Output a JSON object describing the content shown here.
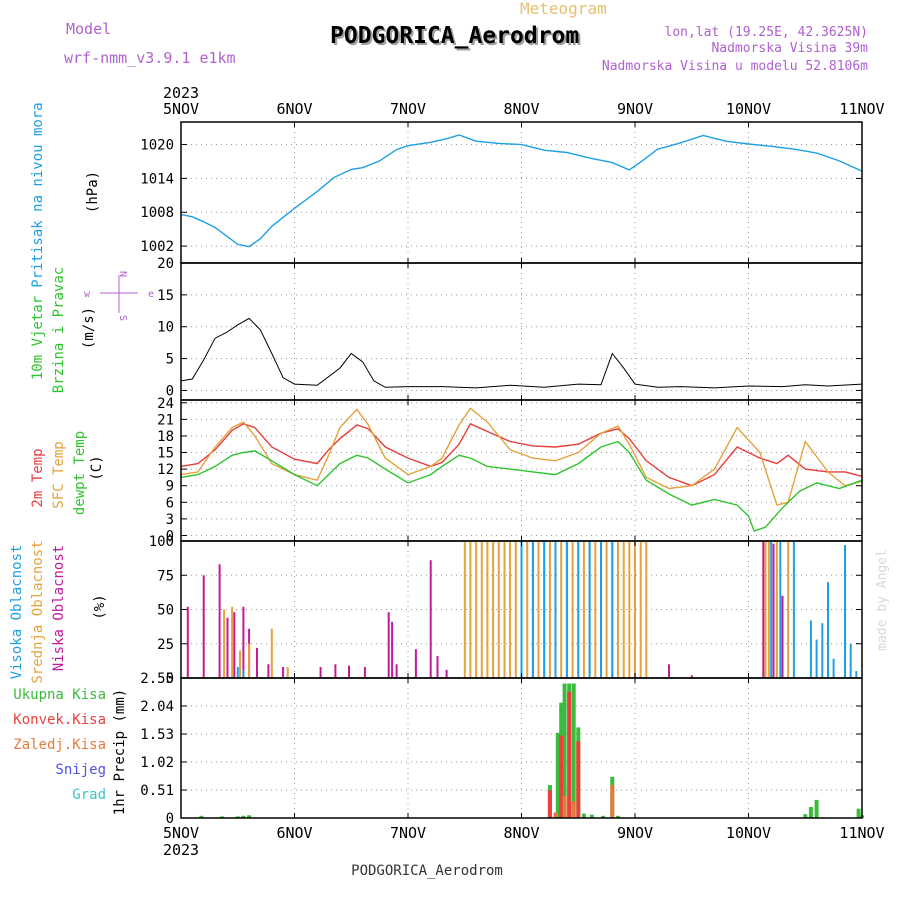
{
  "header": {
    "model_label": "Model",
    "model_name": "wrf-nmm_v3.9.1 e1km",
    "meteogram_label": "Meteogram",
    "station_title": "PODGORICA_Aerodrom",
    "lonlat": "lon,lat (19.25E, 42.3625N)",
    "elevation": "Nadmorska Visina 39m",
    "model_elevation": "Nadmorska Visina u modelu 52.8106m"
  },
  "footer": {
    "station": "PODGORICA_Aerodrom",
    "credit": "made by Angel"
  },
  "colors": {
    "pressure": "#1e9fe6",
    "temp2m": "#e83c3c",
    "sfc_temp": "#e6a23c",
    "dewpt": "#2ec42e",
    "low_cloud": "#c41a9a",
    "mid_cloud": "#e6a23c",
    "high_cloud": "#1e9fe6",
    "wind_speed": "#000000",
    "precip_total": "#3cba3c",
    "precip_convective": "#e8403c",
    "precip_stratiform": "#e67a3c",
    "snow": "#5050e6",
    "hail": "#3cc4c4",
    "model_label": "#b060d0",
    "title_meteogram": "#e6c070"
  },
  "chart_data": [
    {
      "type": "line",
      "panel": "pressure",
      "ylabel_lines": [
        "Pritisak na nivou mora"
      ],
      "unit": "(hPa)",
      "ylim": [
        999,
        1024
      ],
      "yticks": [
        1002,
        1008,
        1014,
        1020
      ],
      "x_top_year": "2023",
      "x_bottom_year": "2023",
      "x_ticklabels": [
        "5NOV",
        "6NOV",
        "7NOV",
        "8NOV",
        "9NOV",
        "10NOV",
        "11NOV"
      ],
      "x_days": [
        0,
        6
      ],
      "series": [
        {
          "name": "Pritisak na nivou mora",
          "x": [
            0,
            0.1,
            0.2,
            0.3,
            0.4,
            0.5,
            0.6,
            0.7,
            0.8,
            1.0,
            1.2,
            1.35,
            1.5,
            1.6,
            1.75,
            1.9,
            2.0,
            2.2,
            2.35,
            2.45,
            2.6,
            2.8,
            3.0,
            3.2,
            3.4,
            3.6,
            3.8,
            3.95,
            4.05,
            4.2,
            4.4,
            4.6,
            4.8,
            5.0,
            5.2,
            5.4,
            5.6,
            5.8,
            6.0
          ],
          "y": [
            1007.6,
            1007.2,
            1006.3,
            1005.3,
            1003.8,
            1002.3,
            1001.9,
            1003.3,
            1005.5,
            1008.7,
            1011.7,
            1014.2,
            1015.6,
            1015.9,
            1017.1,
            1019.1,
            1019.8,
            1020.4,
            1021.1,
            1021.7,
            1020.6,
            1020.2,
            1020.0,
            1019.0,
            1018.6,
            1017.6,
            1016.8,
            1015.5,
            1016.9,
            1019.2,
            1020.3,
            1021.6,
            1020.6,
            1020.1,
            1019.7,
            1019.2,
            1018.5,
            1017.1,
            1015.3
          ]
        }
      ]
    },
    {
      "type": "line",
      "panel": "wind",
      "ylabel_lines": [
        "10m Vjetar",
        "Brzina i Pravac"
      ],
      "unit": "(m/s)",
      "ylim": [
        -1.5,
        20
      ],
      "yticks": [
        0,
        5,
        10,
        15,
        20
      ],
      "compass": {
        "w": "w",
        "e": "e",
        "n": "N",
        "s": "S"
      },
      "series": [
        {
          "name": "Brzina",
          "x": [
            0,
            0.1,
            0.2,
            0.3,
            0.4,
            0.5,
            0.6,
            0.7,
            0.8,
            0.9,
            1.0,
            1.2,
            1.4,
            1.5,
            1.6,
            1.7,
            1.8,
            2.0,
            2.3,
            2.6,
            2.9,
            3.2,
            3.5,
            3.7,
            3.8,
            3.9,
            4.0,
            4.2,
            4.4,
            4.7,
            5.0,
            5.3,
            5.5,
            5.7,
            6.0
          ],
          "y": [
            1.5,
            1.8,
            4.8,
            8.2,
            9.1,
            10.3,
            11.3,
            9.5,
            5.8,
            2.0,
            1.0,
            0.8,
            3.5,
            5.8,
            4.5,
            1.5,
            0.5,
            0.6,
            0.6,
            0.4,
            0.8,
            0.5,
            1.0,
            0.9,
            5.8,
            3.5,
            1.0,
            0.5,
            0.6,
            0.4,
            0.7,
            0.6,
            0.9,
            0.7,
            1.0
          ]
        }
      ]
    },
    {
      "type": "line",
      "panel": "temperature",
      "ylabel_lines": [
        "2m Temp",
        "SFC Temp",
        "dewpt Temp"
      ],
      "unit": "(C)",
      "ylim": [
        -1,
        24.5
      ],
      "yticks": [
        0,
        3,
        6,
        9,
        12,
        15,
        18,
        21,
        24
      ],
      "series": [
        {
          "name": "2m Temp",
          "x": [
            0,
            0.15,
            0.3,
            0.45,
            0.55,
            0.65,
            0.8,
            1.0,
            1.2,
            1.3,
            1.4,
            1.55,
            1.65,
            1.8,
            2.0,
            2.2,
            2.3,
            2.45,
            2.55,
            2.7,
            2.9,
            3.1,
            3.3,
            3.5,
            3.7,
            3.85,
            3.95,
            4.1,
            4.3,
            4.5,
            4.7,
            4.9,
            5.1,
            5.25,
            5.35,
            5.5,
            5.7,
            5.85,
            6.0
          ],
          "y": [
            12.5,
            13.0,
            15.5,
            19.0,
            20.2,
            19.5,
            16.0,
            13.8,
            13.0,
            15.5,
            17.5,
            20.0,
            19.3,
            16.0,
            14.0,
            12.5,
            13.2,
            16.5,
            20.2,
            18.8,
            17.0,
            16.2,
            16.0,
            16.5,
            18.5,
            19.3,
            17.5,
            13.5,
            10.5,
            9.0,
            11.0,
            16.0,
            14.0,
            13.0,
            14.5,
            12.0,
            11.5,
            11.5,
            10.7
          ]
        },
        {
          "name": "SFC Temp",
          "x": [
            0,
            0.15,
            0.3,
            0.45,
            0.55,
            0.65,
            0.8,
            1.0,
            1.2,
            1.3,
            1.4,
            1.55,
            1.65,
            1.8,
            2.0,
            2.2,
            2.3,
            2.45,
            2.55,
            2.7,
            2.9,
            3.1,
            3.3,
            3.5,
            3.7,
            3.85,
            3.95,
            4.1,
            4.3,
            4.5,
            4.7,
            4.9,
            5.1,
            5.25,
            5.35,
            5.5,
            5.7,
            5.85,
            6.0
          ],
          "y": [
            11.0,
            11.5,
            16.0,
            19.5,
            20.5,
            18.0,
            13.0,
            11.0,
            10.0,
            14.5,
            19.5,
            22.8,
            20.0,
            14.0,
            11.0,
            12.5,
            14.0,
            20.0,
            23.0,
            20.5,
            15.5,
            14.0,
            13.5,
            15.0,
            18.5,
            19.8,
            16.5,
            10.5,
            8.5,
            9.0,
            12.0,
            19.5,
            15.0,
            5.5,
            6.0,
            17.0,
            11.5,
            9.0,
            9.8
          ]
        },
        {
          "name": "dewpt Temp",
          "x": [
            0,
            0.15,
            0.3,
            0.45,
            0.55,
            0.65,
            0.8,
            1.0,
            1.2,
            1.3,
            1.4,
            1.55,
            1.65,
            1.8,
            2.0,
            2.2,
            2.3,
            2.45,
            2.55,
            2.7,
            2.9,
            3.1,
            3.3,
            3.5,
            3.7,
            3.85,
            3.95,
            4.1,
            4.3,
            4.5,
            4.7,
            4.9,
            5.0,
            5.05,
            5.15,
            5.3,
            5.45,
            5.6,
            5.8,
            6.0
          ],
          "y": [
            10.5,
            11.0,
            12.5,
            14.5,
            15.0,
            15.3,
            13.5,
            11.0,
            9.0,
            11.0,
            13.0,
            14.5,
            14.0,
            12.0,
            9.5,
            11.0,
            12.5,
            14.5,
            14.0,
            12.5,
            12.0,
            11.5,
            11.0,
            13.0,
            16.0,
            17.0,
            15.0,
            10.0,
            7.5,
            5.5,
            6.5,
            5.5,
            3.5,
            0.8,
            1.5,
            5.0,
            8.0,
            9.5,
            8.5,
            10.0
          ]
        }
      ]
    },
    {
      "type": "bar",
      "panel": "clouds",
      "ylabel_lines": [
        "Visoka Oblacnost",
        "Srednja Oblacnost",
        "Niska Oblacnost"
      ],
      "unit": "(%)",
      "ylim": [
        0,
        100
      ],
      "yticks": [
        0,
        25,
        50,
        75,
        100
      ],
      "series": [
        {
          "name": "Niska Oblacnost",
          "x": [
            0.06,
            0.2,
            0.34,
            0.41,
            0.47,
            0.55,
            0.6,
            0.67,
            0.77,
            0.9,
            1.23,
            1.36,
            1.48,
            1.62,
            1.83,
            1.86,
            1.9,
            2.07,
            2.2,
            2.26,
            2.34,
            3.8,
            4.3,
            4.5,
            5.13,
            5.22,
            5.3
          ],
          "y": [
            52,
            75,
            83,
            44,
            48,
            52,
            36,
            22,
            10,
            8,
            8,
            10,
            9,
            8,
            48,
            41,
            10,
            21,
            86,
            16,
            6,
            4,
            10,
            2,
            100,
            98,
            60
          ]
        },
        {
          "name": "Srednja Oblacnost",
          "x": [
            0.38,
            0.45,
            0.52,
            0.6,
            0.8,
            0.94,
            2.5,
            2.55,
            2.6,
            2.65,
            2.7,
            2.75,
            2.8,
            2.85,
            2.9,
            2.95,
            3.0,
            3.05,
            3.1,
            3.15,
            3.2,
            3.25,
            3.3,
            3.35,
            3.4,
            3.45,
            3.5,
            3.55,
            3.6,
            3.65,
            3.7,
            3.75,
            3.8,
            3.85,
            3.9,
            3.95,
            4.0,
            4.05,
            4.1,
            5.15,
            5.18,
            5.25,
            5.35
          ],
          "y": [
            50,
            52,
            20,
            25,
            36,
            8,
            100,
            100,
            100,
            100,
            100,
            100,
            100,
            100,
            100,
            100,
            100,
            100,
            100,
            100,
            100,
            100,
            100,
            100,
            100,
            100,
            100,
            100,
            100,
            100,
            100,
            100,
            100,
            100,
            100,
            100,
            100,
            100,
            100,
            100,
            100,
            100,
            100
          ]
        },
        {
          "name": "Visoka Oblacnost",
          "x": [
            0.5,
            0.55,
            3.0,
            3.1,
            3.2,
            3.3,
            3.4,
            3.5,
            3.6,
            3.7,
            3.8,
            5.2,
            5.28,
            5.4,
            5.55,
            5.6,
            5.65,
            5.7,
            5.75,
            5.85,
            5.9,
            5.95
          ],
          "y": [
            8,
            6,
            100,
            100,
            100,
            100,
            100,
            100,
            100,
            100,
            100,
            100,
            100,
            100,
            42,
            28,
            40,
            70,
            14,
            97,
            25,
            5
          ]
        }
      ]
    },
    {
      "type": "bar",
      "panel": "precipitation",
      "ylabel_lines": [
        "1hr Precip (mm)"
      ],
      "unit": "(mm)",
      "ylim": [
        0,
        2.55
      ],
      "yticks": [
        0,
        0.51,
        1.02,
        1.53,
        2.04,
        2.55
      ],
      "ytick_labels": [
        "0",
        "0.51",
        "1.02",
        "1.53",
        "2.04",
        "2.55"
      ],
      "legend": [
        "Ukupna Kisa",
        "Konvek.Kisa",
        "Zaledj.Kisa",
        "Snijeg",
        "Grad"
      ],
      "series": [
        {
          "name": "Ukupna Kisa",
          "x": [
            0.18,
            0.36,
            0.5,
            0.55,
            0.6,
            3.25,
            3.32,
            3.35,
            3.38,
            3.42,
            3.46,
            3.5,
            3.55,
            3.62,
            3.72,
            3.8,
            3.85,
            5.5,
            5.55,
            5.6,
            5.97,
            6.0
          ],
          "y": [
            0.04,
            0.03,
            0.03,
            0.04,
            0.05,
            0.6,
            1.55,
            2.1,
            2.45,
            2.45,
            2.45,
            1.65,
            0.08,
            0.06,
            0.04,
            0.75,
            0.04,
            0.07,
            0.2,
            0.33,
            0.17,
            0.05
          ]
        },
        {
          "name": "Konvek.Kisa",
          "x": [
            3.25,
            3.35,
            3.42,
            3.5
          ],
          "y": [
            0.5,
            1.5,
            2.3,
            1.4
          ]
        },
        {
          "name": "Zaledj.Kisa",
          "x": [
            3.3,
            3.38,
            3.46,
            3.8
          ],
          "y": [
            0.1,
            0.4,
            0.3,
            0.6
          ]
        }
      ]
    }
  ]
}
